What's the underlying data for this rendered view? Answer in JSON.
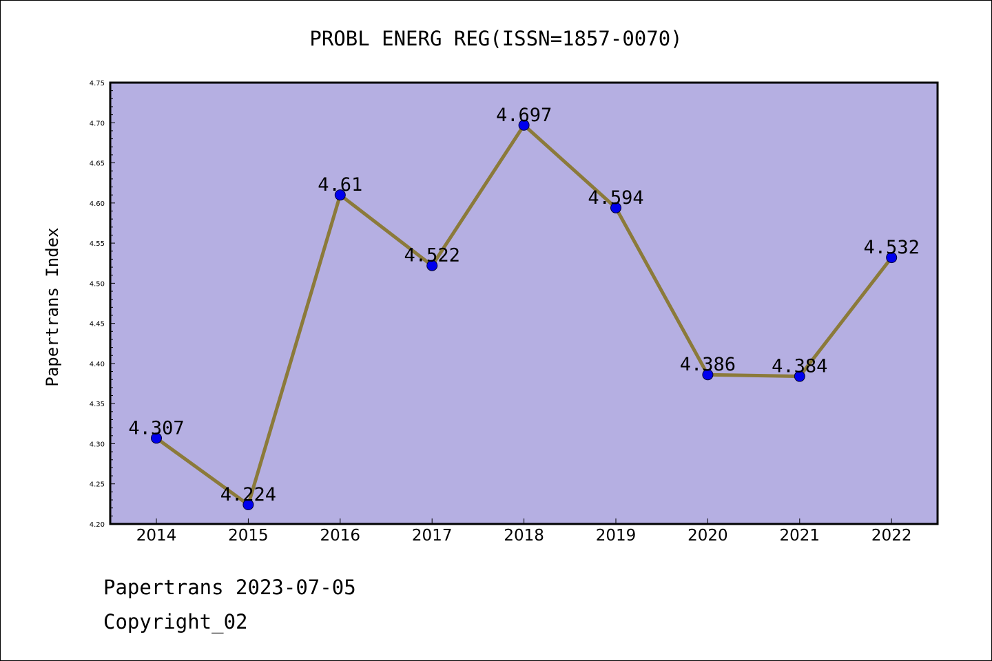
{
  "chart_data": {
    "type": "line",
    "title": "PROBL ENERG REG(ISSN=1857-0070)",
    "ylabel": "Papertrans Index",
    "xlabel": "",
    "categories": [
      "2014",
      "2015",
      "2016",
      "2017",
      "2018",
      "2019",
      "2020",
      "2021",
      "2022"
    ],
    "values": [
      4.307,
      4.224,
      4.61,
      4.522,
      4.697,
      4.594,
      4.386,
      4.384,
      4.532
    ],
    "data_labels": [
      "4.307",
      "4.224",
      "4.61",
      "4.522",
      "4.697",
      "4.594",
      "4.386",
      "4.384",
      "4.532"
    ],
    "ylim": [
      4.2,
      4.75
    ],
    "yticks": [
      "4.20",
      "4.25",
      "4.30",
      "4.35",
      "4.40",
      "4.45",
      "4.50",
      "4.55",
      "4.60",
      "4.65",
      "4.70",
      "4.75"
    ],
    "grid": false,
    "legend": "none",
    "colors": {
      "plot_background": "#b5afe2",
      "line": "#8b7a3a",
      "marker": "#0000ee"
    }
  },
  "footer": {
    "line1": "Papertrans 2023-07-05",
    "line2": "Copyright_02"
  }
}
